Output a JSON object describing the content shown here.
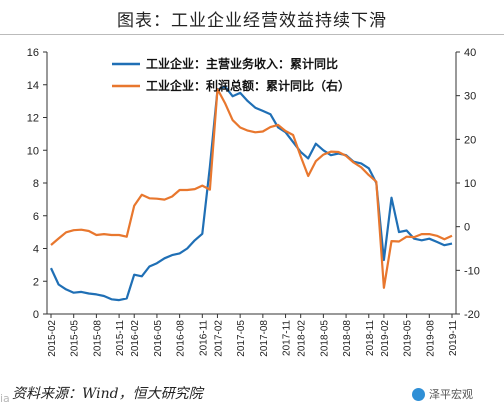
{
  "header": {
    "title": "图表：工业企业经营效益持续下滑"
  },
  "footer": {
    "source": "资料来源：Wind，恒大研究院",
    "watermark": "泽平宏观",
    "corner": "ia"
  },
  "chart_data": {
    "type": "line",
    "legend_position": "top-left",
    "grid": false,
    "x": [
      "2015-02",
      "2015-03",
      "2015-04",
      "2015-05",
      "2015-06",
      "2015-07",
      "2015-08",
      "2015-09",
      "2015-10",
      "2015-11",
      "2015-12",
      "2016-02",
      "2016-03",
      "2016-04",
      "2016-05",
      "2016-06",
      "2016-07",
      "2016-08",
      "2016-09",
      "2016-10",
      "2016-11",
      "2016-12",
      "2017-02",
      "2017-03",
      "2017-04",
      "2017-05",
      "2017-06",
      "2017-07",
      "2017-08",
      "2017-09",
      "2017-10",
      "2017-11",
      "2017-12",
      "2018-02",
      "2018-03",
      "2018-04",
      "2018-05",
      "2018-06",
      "2018-07",
      "2018-08",
      "2018-09",
      "2018-10",
      "2018-11",
      "2018-12",
      "2019-02",
      "2019-03",
      "2019-04",
      "2019-05",
      "2019-06",
      "2019-07",
      "2019-08",
      "2019-09",
      "2019-10",
      "2019-11"
    ],
    "x_tick_labels": [
      "2015-02",
      "2015-05",
      "2015-08",
      "2015-11",
      "2016-02",
      "2016-05",
      "2016-08",
      "2016-11",
      "2017-02",
      "2017-05",
      "2017-08",
      "2017-11",
      "2018-02",
      "2018-05",
      "2018-08",
      "2018-11",
      "2019-02",
      "2019-05",
      "2019-08",
      "2019-11"
    ],
    "y_left": {
      "ylim": [
        0,
        16
      ],
      "ticks": [
        0,
        2,
        4,
        6,
        8,
        10,
        12,
        14,
        16
      ]
    },
    "y_right": {
      "ylim": [
        -20,
        40
      ],
      "ticks": [
        -20,
        -10,
        0,
        10,
        20,
        30,
        40
      ]
    },
    "series": [
      {
        "name": "工业企业：主营业务收入：累计同比",
        "axis": "left",
        "color": "#1f6fb5",
        "values": [
          2.8,
          1.8,
          1.5,
          1.3,
          1.35,
          1.25,
          1.2,
          1.1,
          0.9,
          0.85,
          0.95,
          2.4,
          2.3,
          2.9,
          3.1,
          3.4,
          3.6,
          3.7,
          4.0,
          4.5,
          4.9,
          9.0,
          13.7,
          13.9,
          13.3,
          13.5,
          13.0,
          12.6,
          12.4,
          12.2,
          11.4,
          11.1,
          10.5,
          9.9,
          9.5,
          10.4,
          10.0,
          9.7,
          9.8,
          9.7,
          9.3,
          9.2,
          8.9,
          8.0,
          3.3,
          7.1,
          5.0,
          5.1,
          4.6,
          4.5,
          4.6,
          4.4,
          4.2,
          4.3
        ]
      },
      {
        "name": "工业企业：利润总额：累计同比（右）",
        "axis": "right",
        "color": "#e8772e",
        "values": [
          -4.2,
          -2.7,
          -1.3,
          -0.8,
          -0.7,
          -1.0,
          -1.9,
          -1.7,
          -1.9,
          -1.9,
          -2.3,
          4.8,
          7.3,
          6.5,
          6.4,
          6.2,
          6.9,
          8.4,
          8.4,
          8.6,
          9.4,
          8.5,
          31.5,
          28.3,
          24.4,
          22.7,
          22.0,
          21.6,
          21.8,
          22.8,
          23.3,
          21.9,
          21.0,
          16.1,
          11.6,
          15.0,
          16.5,
          17.2,
          17.1,
          16.2,
          14.7,
          13.6,
          11.8,
          10.3,
          -14.0,
          -3.3,
          -3.4,
          -2.3,
          -2.4,
          -1.7,
          -1.7,
          -2.1,
          -2.9,
          -2.1
        ]
      }
    ]
  }
}
